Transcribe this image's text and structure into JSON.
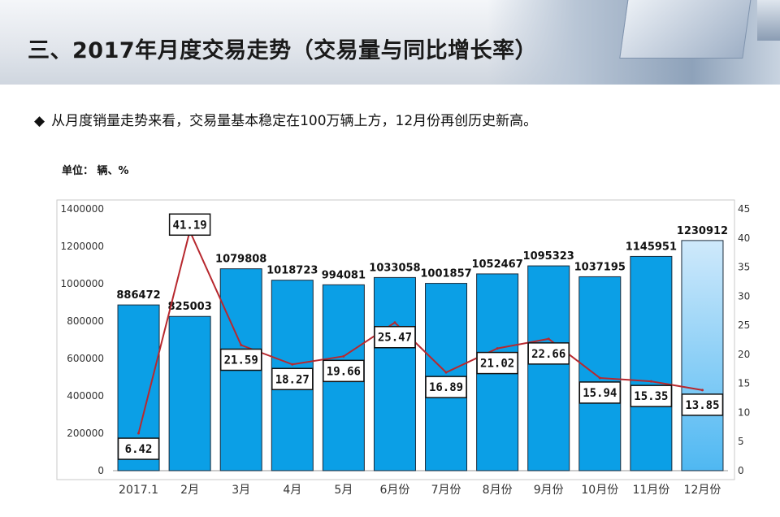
{
  "slide": {
    "title": "三、2017年月度交易走势（交易量与同比增长率）",
    "bullet_mark": "◆",
    "bullet_text": "从月度销量走势来看，交易量基本稳定在100万辆上方，12月份再创历史新高。",
    "unit_label": "单位：  辆、%"
  },
  "chart_data": {
    "type": "bar",
    "categories": [
      "2017.1",
      "2月",
      "3月",
      "4月",
      "5月",
      "6月份",
      "7月份",
      "8月份",
      "9月份",
      "10月份",
      "11月份",
      "12月份"
    ],
    "series": [
      {
        "type": "bar",
        "axis": "left",
        "values": [
          886472,
          825003,
          1079808,
          1018723,
          994081,
          1033058,
          1001857,
          1052467,
          1095323,
          1037195,
          1145951,
          1230912
        ]
      },
      {
        "type": "line",
        "axis": "right",
        "values": [
          6.42,
          41.19,
          21.59,
          18.27,
          19.66,
          25.47,
          16.89,
          21.02,
          22.66,
          15.94,
          15.35,
          13.85
        ]
      }
    ],
    "bar_value_labels": [
      "886472",
      "825003",
      "1079808",
      "1018723",
      "994081",
      "1033058",
      "1001857",
      "1052467",
      "1095323",
      "1037195",
      "1145951",
      "1230912"
    ],
    "line_value_labels": [
      "6.42",
      "41.19",
      "21.59",
      "18.27",
      "19.66",
      "25.47",
      "16.89",
      "21.02",
      "22.66",
      "15.94",
      "15.35",
      "13.85"
    ],
    "left_ticks": [
      "0",
      "200000",
      "400000",
      "600000",
      "800000",
      "1000000",
      "1200000",
      "1400000"
    ],
    "right_ticks": [
      "0",
      "5",
      "10",
      "15",
      "20",
      "25",
      "30",
      "35",
      "40",
      "45"
    ],
    "ylim_left": [
      0,
      1400000
    ],
    "ylim_right": [
      0,
      45
    ],
    "grid": false,
    "colors": {
      "bar": "#0b9fe6",
      "bar_edge": "#1a2a3a",
      "highlight_bar_top": "#cfe9fb",
      "highlight_bar_bottom": "#4fb8f2",
      "line": "#b7282e",
      "label_box_border": "#111111"
    }
  }
}
